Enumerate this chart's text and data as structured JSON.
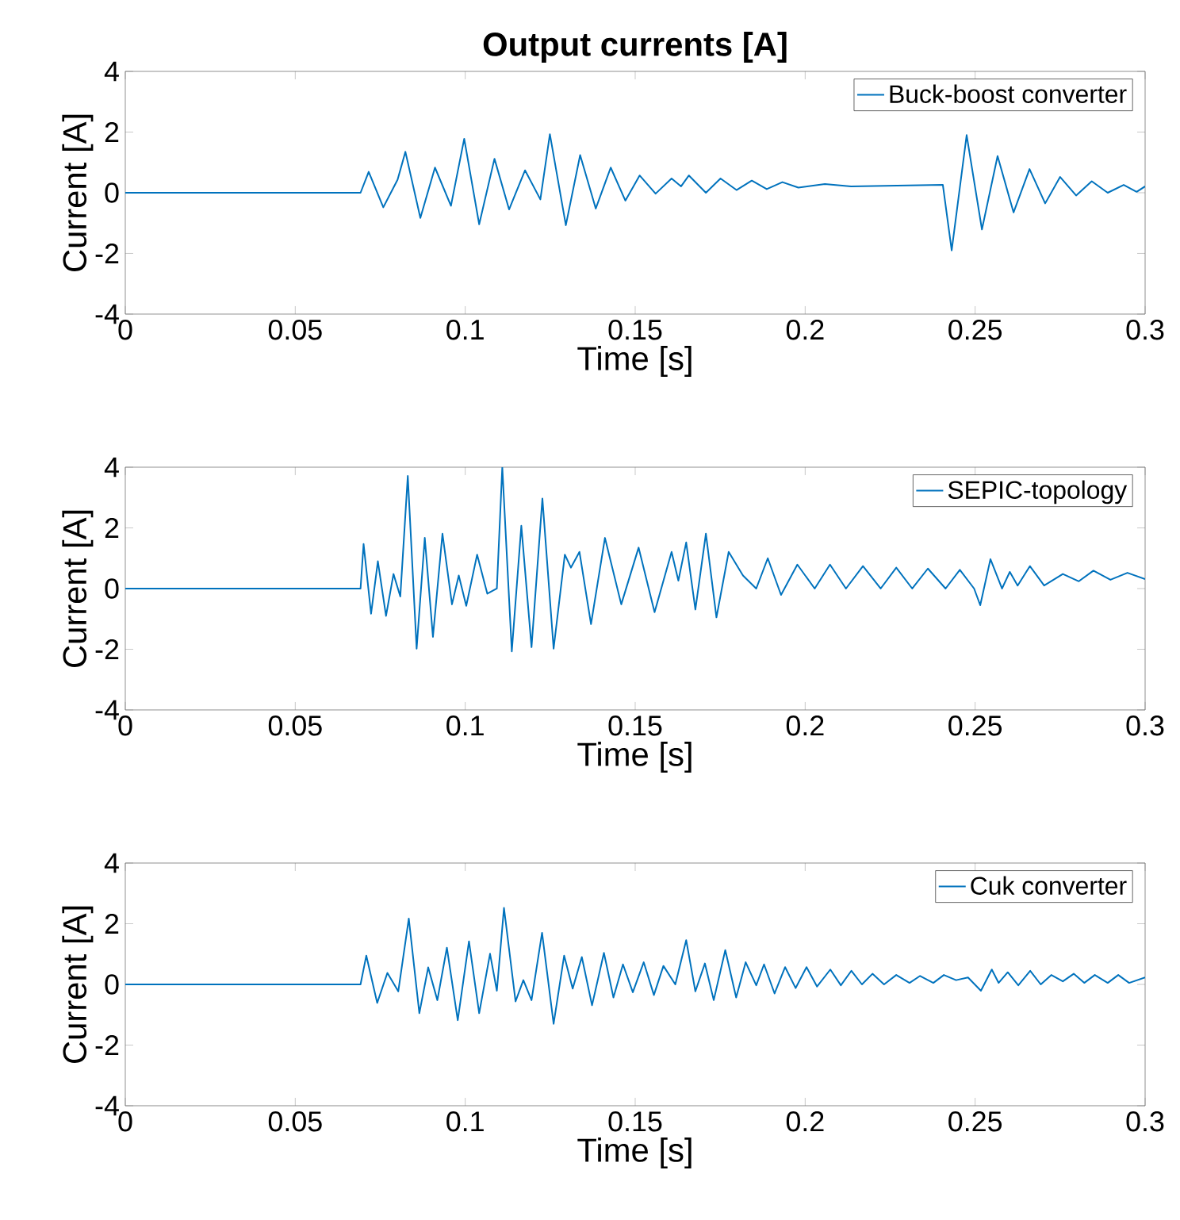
{
  "chart_data": [
    {
      "type": "line",
      "title": "Output currents [A]",
      "xlabel": "Time [s]",
      "ylabel": "Current [A]",
      "xlim": [
        0,
        0.3
      ],
      "xticks": [
        0,
        0.05,
        0.1,
        0.15,
        0.2,
        0.25,
        0.3
      ],
      "ylim": [
        -4,
        4
      ],
      "yticks": [
        -4,
        -2,
        0,
        2,
        4
      ],
      "legend": "top right",
      "series": [
        {
          "name": "Buck-boost converter",
          "color": "#0072bd",
          "x": [
            0,
            0.0692,
            0.0716,
            0.0759,
            0.0801,
            0.0824,
            0.0868,
            0.0911,
            0.0958,
            0.0997,
            0.1041,
            0.1086,
            0.1129,
            0.1176,
            0.1221,
            0.1249,
            0.1296,
            0.1338,
            0.1384,
            0.1428,
            0.1471,
            0.1513,
            0.156,
            0.1607,
            0.1635,
            0.1658,
            0.1708,
            0.1751,
            0.1798,
            0.1843,
            0.1887,
            0.1933,
            0.198,
            0.2058,
            0.2135,
            0.2405,
            0.2431,
            0.2475,
            0.252,
            0.2566,
            0.2613,
            0.266,
            0.2706,
            0.275,
            0.2797,
            0.2843,
            0.289,
            0.2937,
            0.2975,
            0.3
          ],
          "values": [
            0,
            0,
            0.69,
            -0.48,
            0.43,
            1.35,
            -0.83,
            0.83,
            -0.43,
            1.78,
            -1.04,
            1.12,
            -0.55,
            0.74,
            -0.22,
            1.93,
            -1.07,
            1.24,
            -0.52,
            0.83,
            -0.26,
            0.57,
            -0.03,
            0.47,
            0.21,
            0.57,
            0,
            0.47,
            0.09,
            0.4,
            0.12,
            0.35,
            0.17,
            0.29,
            0.21,
            0.26,
            -1.9,
            1.9,
            -1.21,
            1.21,
            -0.65,
            0.78,
            -0.35,
            0.52,
            -0.09,
            0.38,
            0,
            0.26,
            0.03,
            0.21
          ]
        }
      ]
    },
    {
      "type": "line",
      "xlabel": "Time [s]",
      "ylabel": "Current [A]",
      "xlim": [
        0,
        0.3
      ],
      "xticks": [
        0,
        0.05,
        0.1,
        0.15,
        0.2,
        0.25,
        0.3
      ],
      "ylim": [
        -4,
        4
      ],
      "yticks": [
        -4,
        -2,
        0,
        2,
        4
      ],
      "legend": "top right",
      "series": [
        {
          "name": "SEPIC-topology",
          "color": "#0072bd",
          "x": [
            0,
            0.0692,
            0.0701,
            0.0723,
            0.0743,
            0.0767,
            0.0789,
            0.0809,
            0.0831,
            0.0857,
            0.0881,
            0.0905,
            0.0933,
            0.0961,
            0.0981,
            0.1003,
            0.1035,
            0.1065,
            0.1093,
            0.1109,
            0.1137,
            0.1165,
            0.1195,
            0.1227,
            0.126,
            0.1293,
            0.1311,
            0.1336,
            0.137,
            0.1411,
            0.1459,
            0.151,
            0.1557,
            0.1607,
            0.1627,
            0.165,
            0.1677,
            0.1708,
            0.1739,
            0.1775,
            0.1817,
            0.1856,
            0.189,
            0.1929,
            0.1977,
            0.2028,
            0.2073,
            0.212,
            0.217,
            0.2222,
            0.2268,
            0.2315,
            0.2361,
            0.2413,
            0.2455,
            0.2497,
            0.2515,
            0.2545,
            0.2579,
            0.2602,
            0.2625,
            0.2661,
            0.2703,
            0.2758,
            0.2805,
            0.2848,
            0.2898,
            0.2948,
            0.3
          ],
          "values": [
            0,
            0,
            1.47,
            -0.83,
            0.9,
            -0.9,
            0.48,
            -0.26,
            3.71,
            -1.98,
            1.67,
            -1.59,
            1.81,
            -0.52,
            0.43,
            -0.57,
            1.12,
            -0.17,
            0,
            4,
            -2.07,
            2.07,
            -1.93,
            2.97,
            -1.98,
            1.12,
            0.69,
            1.21,
            -1.17,
            1.67,
            -0.52,
            1.35,
            -0.78,
            1.21,
            0.26,
            1.52,
            -0.69,
            1.81,
            -0.95,
            1.21,
            0.43,
            0,
            1.0,
            -0.21,
            0.79,
            0,
            0.79,
            0,
            0.74,
            0,
            0.69,
            0,
            0.66,
            0,
            0.62,
            0,
            -0.55,
            0.97,
            0,
            0.55,
            0.1,
            0.74,
            0.1,
            0.48,
            0.24,
            0.59,
            0.29,
            0.52,
            0.31
          ]
        }
      ]
    },
    {
      "type": "line",
      "xlabel": "Time [s]",
      "ylabel": "Current [A]",
      "xlim": [
        0,
        0.3
      ],
      "xticks": [
        0,
        0.05,
        0.1,
        0.15,
        0.2,
        0.25,
        0.3
      ],
      "ylim": [
        -4,
        4
      ],
      "yticks": [
        -4,
        -2,
        0,
        2,
        4
      ],
      "legend": "top right",
      "series": [
        {
          "name": "Cuk converter",
          "color": "#0072bd",
          "x": [
            0,
            0.0692,
            0.0709,
            0.0741,
            0.0771,
            0.0803,
            0.0834,
            0.0865,
            0.0891,
            0.0918,
            0.0946,
            0.0978,
            0.1011,
            0.1041,
            0.1073,
            0.1093,
            0.1114,
            0.1148,
            0.1171,
            0.1195,
            0.1226,
            0.126,
            0.1291,
            0.1316,
            0.1343,
            0.1373,
            0.1408,
            0.1436,
            0.1464,
            0.1493,
            0.1525,
            0.1555,
            0.1583,
            0.1618,
            0.165,
            0.1677,
            0.1705,
            0.1731,
            0.1765,
            0.1797,
            0.1825,
            0.1856,
            0.1879,
            0.191,
            0.1941,
            0.1972,
            0.2004,
            0.2035,
            0.2074,
            0.2105,
            0.2136,
            0.2167,
            0.2198,
            0.2232,
            0.2268,
            0.2307,
            0.2338,
            0.2377,
            0.2408,
            0.2444,
            0.2479,
            0.2517,
            0.2549,
            0.2569,
            0.2596,
            0.2627,
            0.2662,
            0.2693,
            0.2724,
            0.2758,
            0.279,
            0.2821,
            0.2852,
            0.289,
            0.2921,
            0.2953,
            0.3
          ],
          "values": [
            0,
            0,
            0.95,
            -0.61,
            0.38,
            -0.23,
            2.17,
            -0.95,
            0.56,
            -0.52,
            1.21,
            -1.18,
            1.42,
            -0.95,
            1.01,
            -0.21,
            2.52,
            -0.56,
            0.14,
            -0.52,
            1.7,
            -1.3,
            0.95,
            -0.14,
            0.9,
            -0.69,
            1.04,
            -0.43,
            0.66,
            -0.26,
            0.73,
            -0.35,
            0.61,
            0,
            1.46,
            -0.23,
            0.69,
            -0.52,
            1.13,
            -0.43,
            0.73,
            -0.03,
            0.66,
            -0.3,
            0.57,
            -0.12,
            0.57,
            -0.07,
            0.49,
            -0.03,
            0.45,
            0,
            0.35,
            0,
            0.31,
            0.05,
            0.28,
            0.05,
            0.31,
            0.14,
            0.23,
            -0.21,
            0.49,
            0.05,
            0.4,
            -0.03,
            0.45,
            0,
            0.31,
            0.1,
            0.35,
            0.05,
            0.31,
            0.05,
            0.31,
            0.05,
            0.23
          ]
        }
      ]
    }
  ]
}
